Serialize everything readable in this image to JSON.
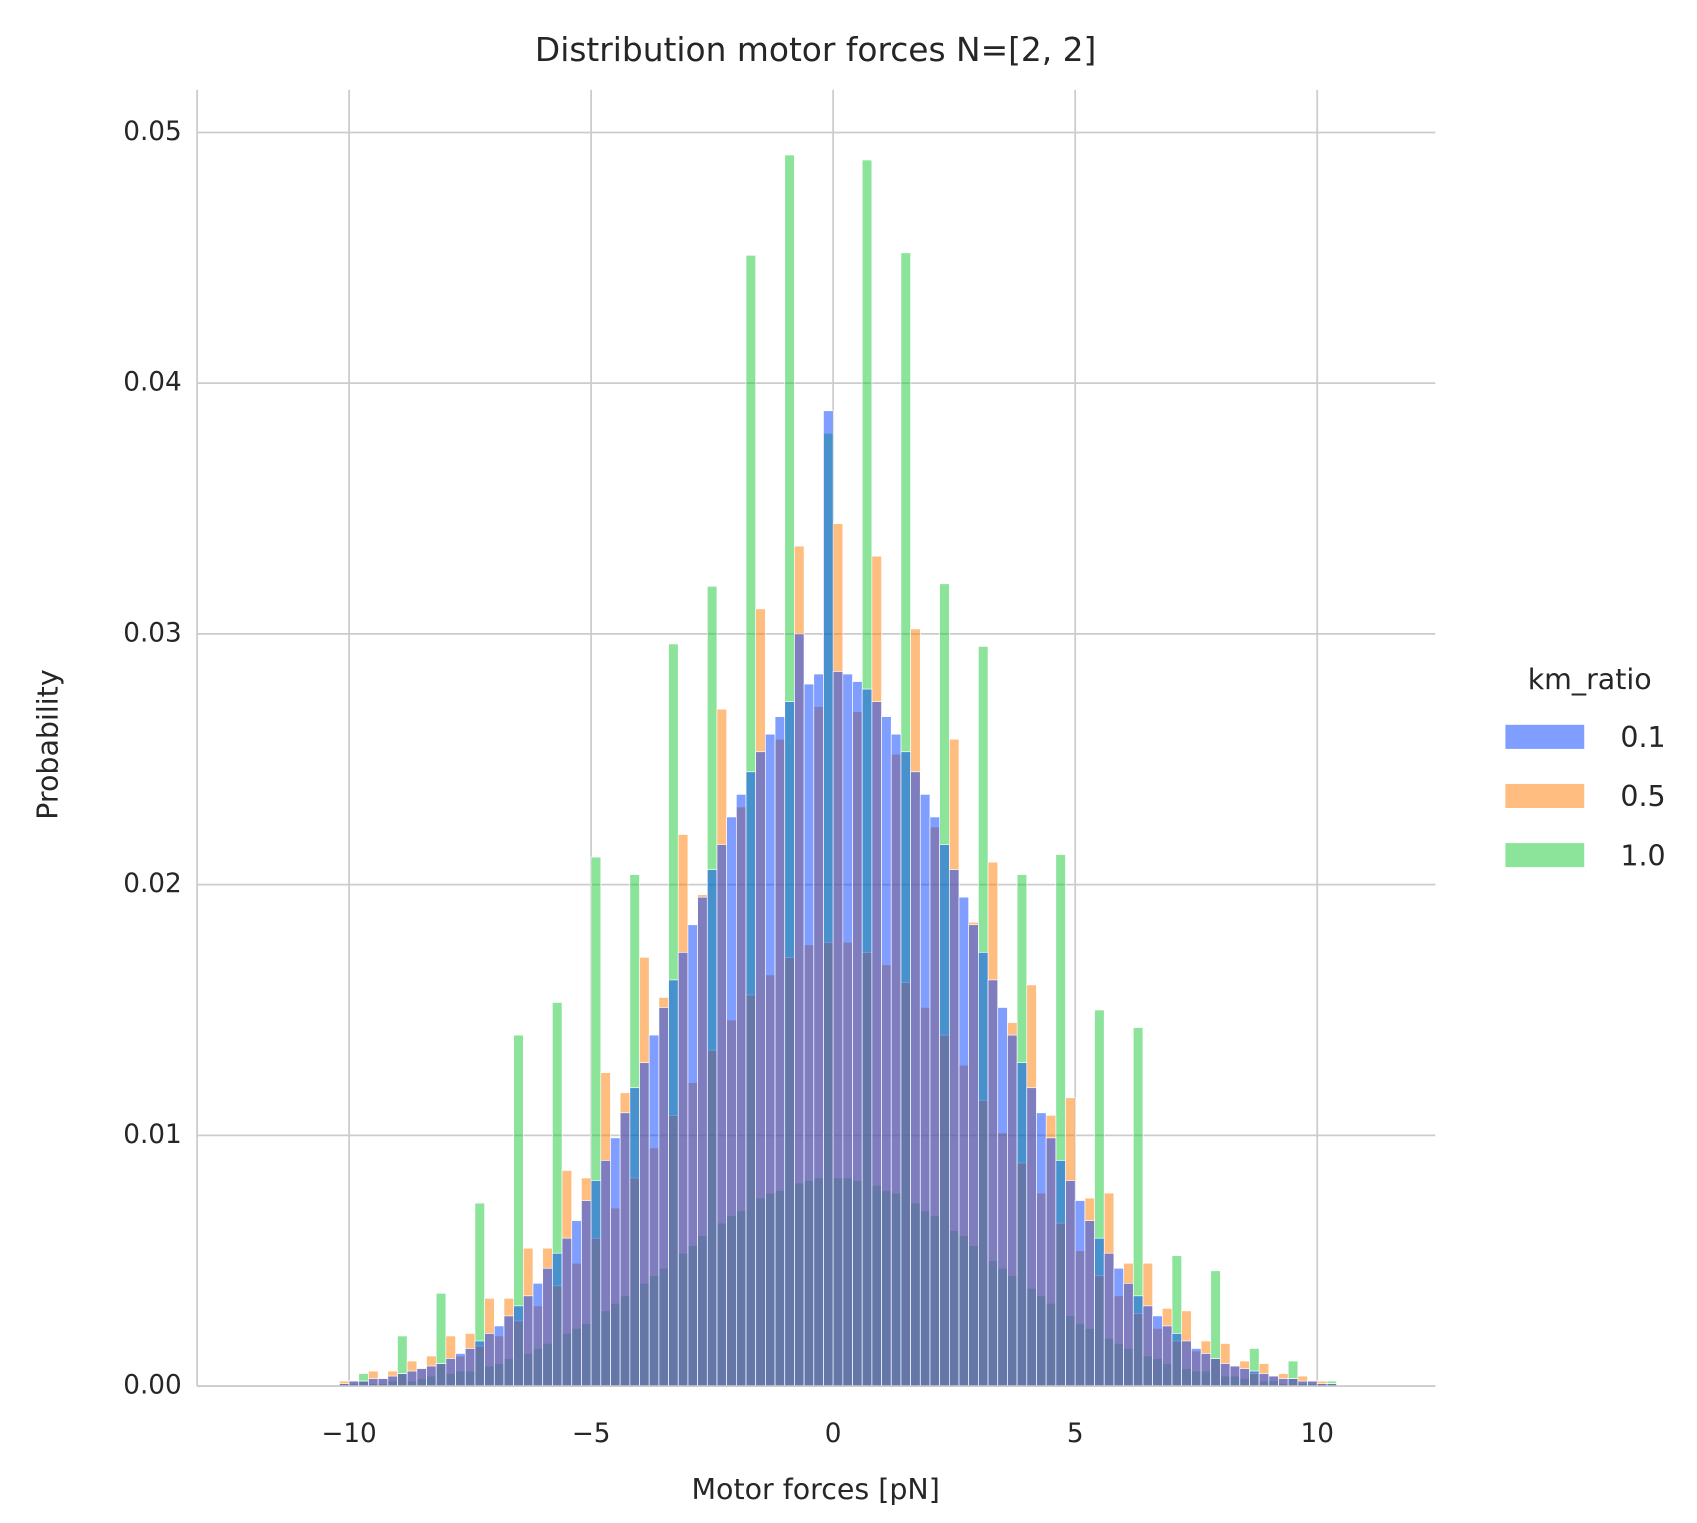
{
  "chart_data": {
    "type": "histogram",
    "title": "Distribution motor forces N=[2, 2]",
    "x_label": "Motor forces [pN]",
    "y_label": "Probability",
    "legend_title": "km_ratio",
    "legend": "right",
    "grid": true,
    "xlim": [
      -13.14,
      12.44
    ],
    "ylim": [
      0,
      0.0517
    ],
    "xticks": [
      {
        "value": -10,
        "label": "−10"
      },
      {
        "value": -5,
        "label": "−5"
      },
      0,
      5,
      10
    ],
    "yticks": [
      {
        "value": 0,
        "label": "0.00"
      },
      {
        "value": 0.01,
        "label": "0.01"
      },
      {
        "value": 0.02,
        "label": "0.02"
      },
      {
        "value": 0.03,
        "label": "0.03"
      },
      {
        "value": 0.04,
        "label": "0.04"
      },
      {
        "value": 0.05,
        "label": "0.05"
      }
    ],
    "bins": [
      -10.2,
      -10.0,
      -9.8,
      -9.6,
      -9.4,
      -9.2,
      -9.0,
      -8.8,
      -8.6,
      -8.4,
      -8.2,
      -8.0,
      -7.8,
      -7.6,
      -7.4,
      -7.2,
      -7.0,
      -6.8,
      -6.6,
      -6.4,
      -6.2,
      -6.0,
      -5.8,
      -5.6,
      -5.4,
      -5.2,
      -5.0,
      -4.8,
      -4.6,
      -4.4,
      -4.2,
      -4.0,
      -3.8,
      -3.6,
      -3.4,
      -3.2,
      -3.0,
      -2.8,
      -2.6,
      -2.4,
      -2.2,
      -2.0,
      -1.8,
      -1.6,
      -1.4,
      -1.2,
      -1.0,
      -0.8,
      -0.6,
      -0.4,
      -0.2,
      0,
      0.2,
      0.4,
      0.6,
      0.8,
      1.0,
      1.2,
      1.4,
      1.6,
      1.8,
      2.0,
      2.2,
      2.4,
      2.6,
      2.8,
      3.0,
      3.2,
      3.4,
      3.6,
      3.8,
      4.0,
      4.2,
      4.4,
      4.6,
      4.8,
      5.0,
      5.2,
      5.4,
      5.6,
      5.8,
      6.0,
      6.2,
      6.4,
      6.6,
      6.8,
      7.0,
      7.2,
      7.4,
      7.6,
      7.8,
      8.0,
      8.2,
      8.4,
      8.6,
      8.8,
      9.0,
      9.2,
      9.4,
      9.6,
      9.8,
      10.0,
      10.2,
      10.4
    ],
    "series": [
      {
        "name": "0.1",
        "color": "#023eff",
        "values": [
          0.0001,
          0.0002,
          0.0002,
          0.0003,
          0.0003,
          0.0004,
          0.0005,
          0.0006,
          0.0007,
          0.0008,
          0.0009,
          0.0011,
          0.0013,
          0.0015,
          0.0018,
          0.0021,
          0.0024,
          0.0028,
          0.0032,
          0.0036,
          0.0041,
          0.0047,
          0.0053,
          0.0059,
          0.0066,
          0.0074,
          0.0082,
          0.009,
          0.0099,
          0.0109,
          0.0119,
          0.0129,
          0.014,
          0.0151,
          0.0162,
          0.0173,
          0.0184,
          0.0195,
          0.0206,
          0.0216,
          0.0227,
          0.0236,
          0.0245,
          0.0253,
          0.026,
          0.0267,
          0.0273,
          0.03,
          0.028,
          0.0284,
          0.0389,
          0.0285,
          0.0284,
          0.0281,
          0.0278,
          0.0273,
          0.0267,
          0.026,
          0.0253,
          0.0245,
          0.0236,
          0.0227,
          0.0216,
          0.0206,
          0.0195,
          0.0184,
          0.0173,
          0.0162,
          0.0151,
          0.014,
          0.0129,
          0.0119,
          0.0109,
          0.0099,
          0.009,
          0.0082,
          0.0074,
          0.0066,
          0.0059,
          0.0053,
          0.0047,
          0.0041,
          0.0036,
          0.0032,
          0.0028,
          0.0024,
          0.0021,
          0.0018,
          0.0015,
          0.0013,
          0.0011,
          0.0009,
          0.0008,
          0.0007,
          0.0006,
          0.0005,
          0.0004,
          0.0003,
          0.0003,
          0.0002,
          0.0002,
          0.0001,
          0.0001
        ]
      },
      {
        "name": "0.5",
        "color": "#ff7c00",
        "values": [
          0.0002,
          0.0002,
          0.0002,
          0.0006,
          0.0003,
          0.0006,
          0.0005,
          0.001,
          0.0007,
          0.0012,
          0.0009,
          0.002,
          0.0012,
          0.0021,
          0.0016,
          0.0035,
          0.002,
          0.0035,
          0.0026,
          0.0055,
          0.0032,
          0.0055,
          0.004,
          0.0086,
          0.0049,
          0.0083,
          0.0059,
          0.0125,
          0.0071,
          0.0117,
          0.0083,
          0.0171,
          0.0095,
          0.0155,
          0.0108,
          0.022,
          0.0121,
          0.0196,
          0.0134,
          0.027,
          0.0146,
          0.0231,
          0.0156,
          0.031,
          0.0164,
          0.0258,
          0.0171,
          0.0335,
          0.0176,
          0.0271,
          0.0177,
          0.0344,
          0.0177,
          0.0269,
          0.0173,
          0.0331,
          0.0168,
          0.0252,
          0.0161,
          0.0302,
          0.0151,
          0.0223,
          0.014,
          0.0258,
          0.0128,
          0.0185,
          0.0114,
          0.0209,
          0.0101,
          0.0145,
          0.0089,
          0.016,
          0.0077,
          0.0108,
          0.0065,
          0.0115,
          0.0054,
          0.0075,
          0.0044,
          0.0077,
          0.0036,
          0.0049,
          0.0029,
          0.0049,
          0.0023,
          0.0031,
          0.0018,
          0.003,
          0.0014,
          0.0018,
          0.0011,
          0.0017,
          0.0008,
          0.001,
          0.0005,
          0.0009,
          0.0004,
          0.0005,
          0.0003,
          0.0004,
          0.0002,
          0.0002,
          0.0001
        ]
      },
      {
        "name": "1.0",
        "color": "#1ac938",
        "values": [
          0.0001,
          0.0001,
          0.0005,
          0.0001,
          0.0001,
          0.0002,
          0.002,
          0.0002,
          0.0003,
          0.0004,
          0.0037,
          0.0005,
          0.0006,
          0.0006,
          0.0073,
          0.0008,
          0.0009,
          0.0011,
          0.014,
          0.0013,
          0.0015,
          0.0017,
          0.0153,
          0.0021,
          0.0023,
          0.0025,
          0.0211,
          0.003,
          0.0033,
          0.0036,
          0.0204,
          0.0041,
          0.0044,
          0.0047,
          0.0296,
          0.0053,
          0.0056,
          0.006,
          0.0319,
          0.0065,
          0.0068,
          0.007,
          0.0451,
          0.0075,
          0.0077,
          0.0078,
          0.0491,
          0.0081,
          0.0082,
          0.0083,
          0.038,
          0.0083,
          0.0083,
          0.0082,
          0.0489,
          0.008,
          0.0078,
          0.0077,
          0.0452,
          0.0073,
          0.007,
          0.0068,
          0.032,
          0.0062,
          0.006,
          0.0056,
          0.0295,
          0.005,
          0.0047,
          0.0044,
          0.0204,
          0.0039,
          0.0036,
          0.0033,
          0.0212,
          0.0028,
          0.0025,
          0.0023,
          0.015,
          0.0019,
          0.0017,
          0.0015,
          0.0143,
          0.0012,
          0.0011,
          0.0009,
          0.0052,
          0.0007,
          0.0006,
          0.0006,
          0.0046,
          0.0004,
          0.0004,
          0.0003,
          0.0015,
          0.0002,
          0.0002,
          0.0001,
          0.001,
          0.0001,
          0.0001,
          0.0001,
          0.0002
        ]
      }
    ]
  }
}
